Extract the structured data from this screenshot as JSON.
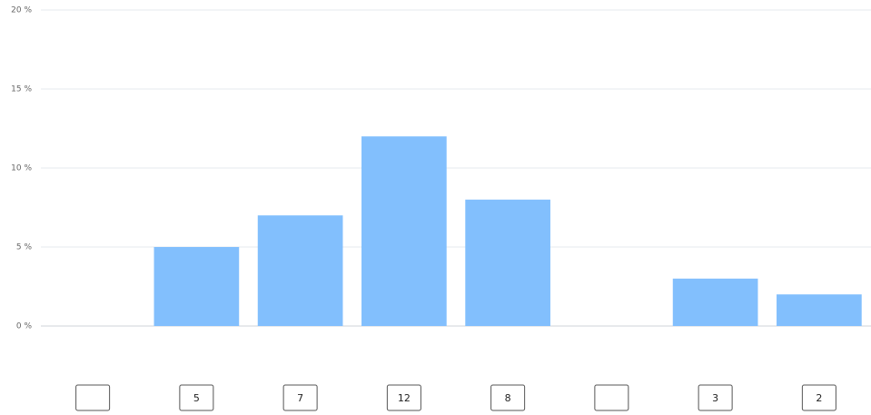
{
  "chart_data": {
    "type": "bar",
    "categories": [
      null,
      null,
      null,
      null,
      null,
      null,
      null,
      null
    ],
    "values": [
      null,
      5,
      7,
      12,
      8,
      null,
      3,
      2
    ],
    "color": "#82bffd",
    "ylim": [
      0,
      20
    ],
    "yticks": [
      {
        "value": 0,
        "label": "0 %"
      },
      {
        "value": 5,
        "label": "5 %"
      },
      {
        "value": 10,
        "label": "10 %"
      },
      {
        "value": 15,
        "label": "15 %"
      },
      {
        "value": 20,
        "label": "20 %"
      }
    ],
    "grid": true
  }
}
